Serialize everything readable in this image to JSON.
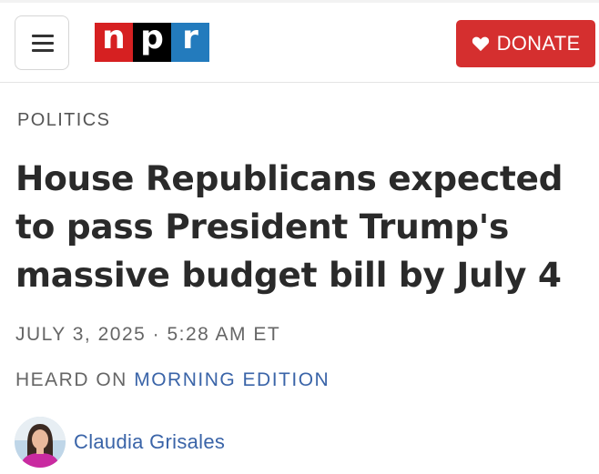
{
  "header": {
    "logo_letters": [
      "n",
      "p",
      "r"
    ],
    "logo_colors": [
      "#d62021",
      "#000000",
      "#237bbd"
    ],
    "donate_label": "DONATE"
  },
  "article": {
    "section": "POLITICS",
    "headline": "House Republicans expected to pass President Trump's massive budget bill by July 4",
    "date": "JULY 3, 2025 · 5:28 AM ET",
    "heard_on_prefix": "HEARD ON",
    "program": "MORNING EDITION",
    "author": "Claudia Grisales"
  },
  "colors": {
    "accent_link": "#3a64a8",
    "donate_bg": "#d52f2f"
  }
}
